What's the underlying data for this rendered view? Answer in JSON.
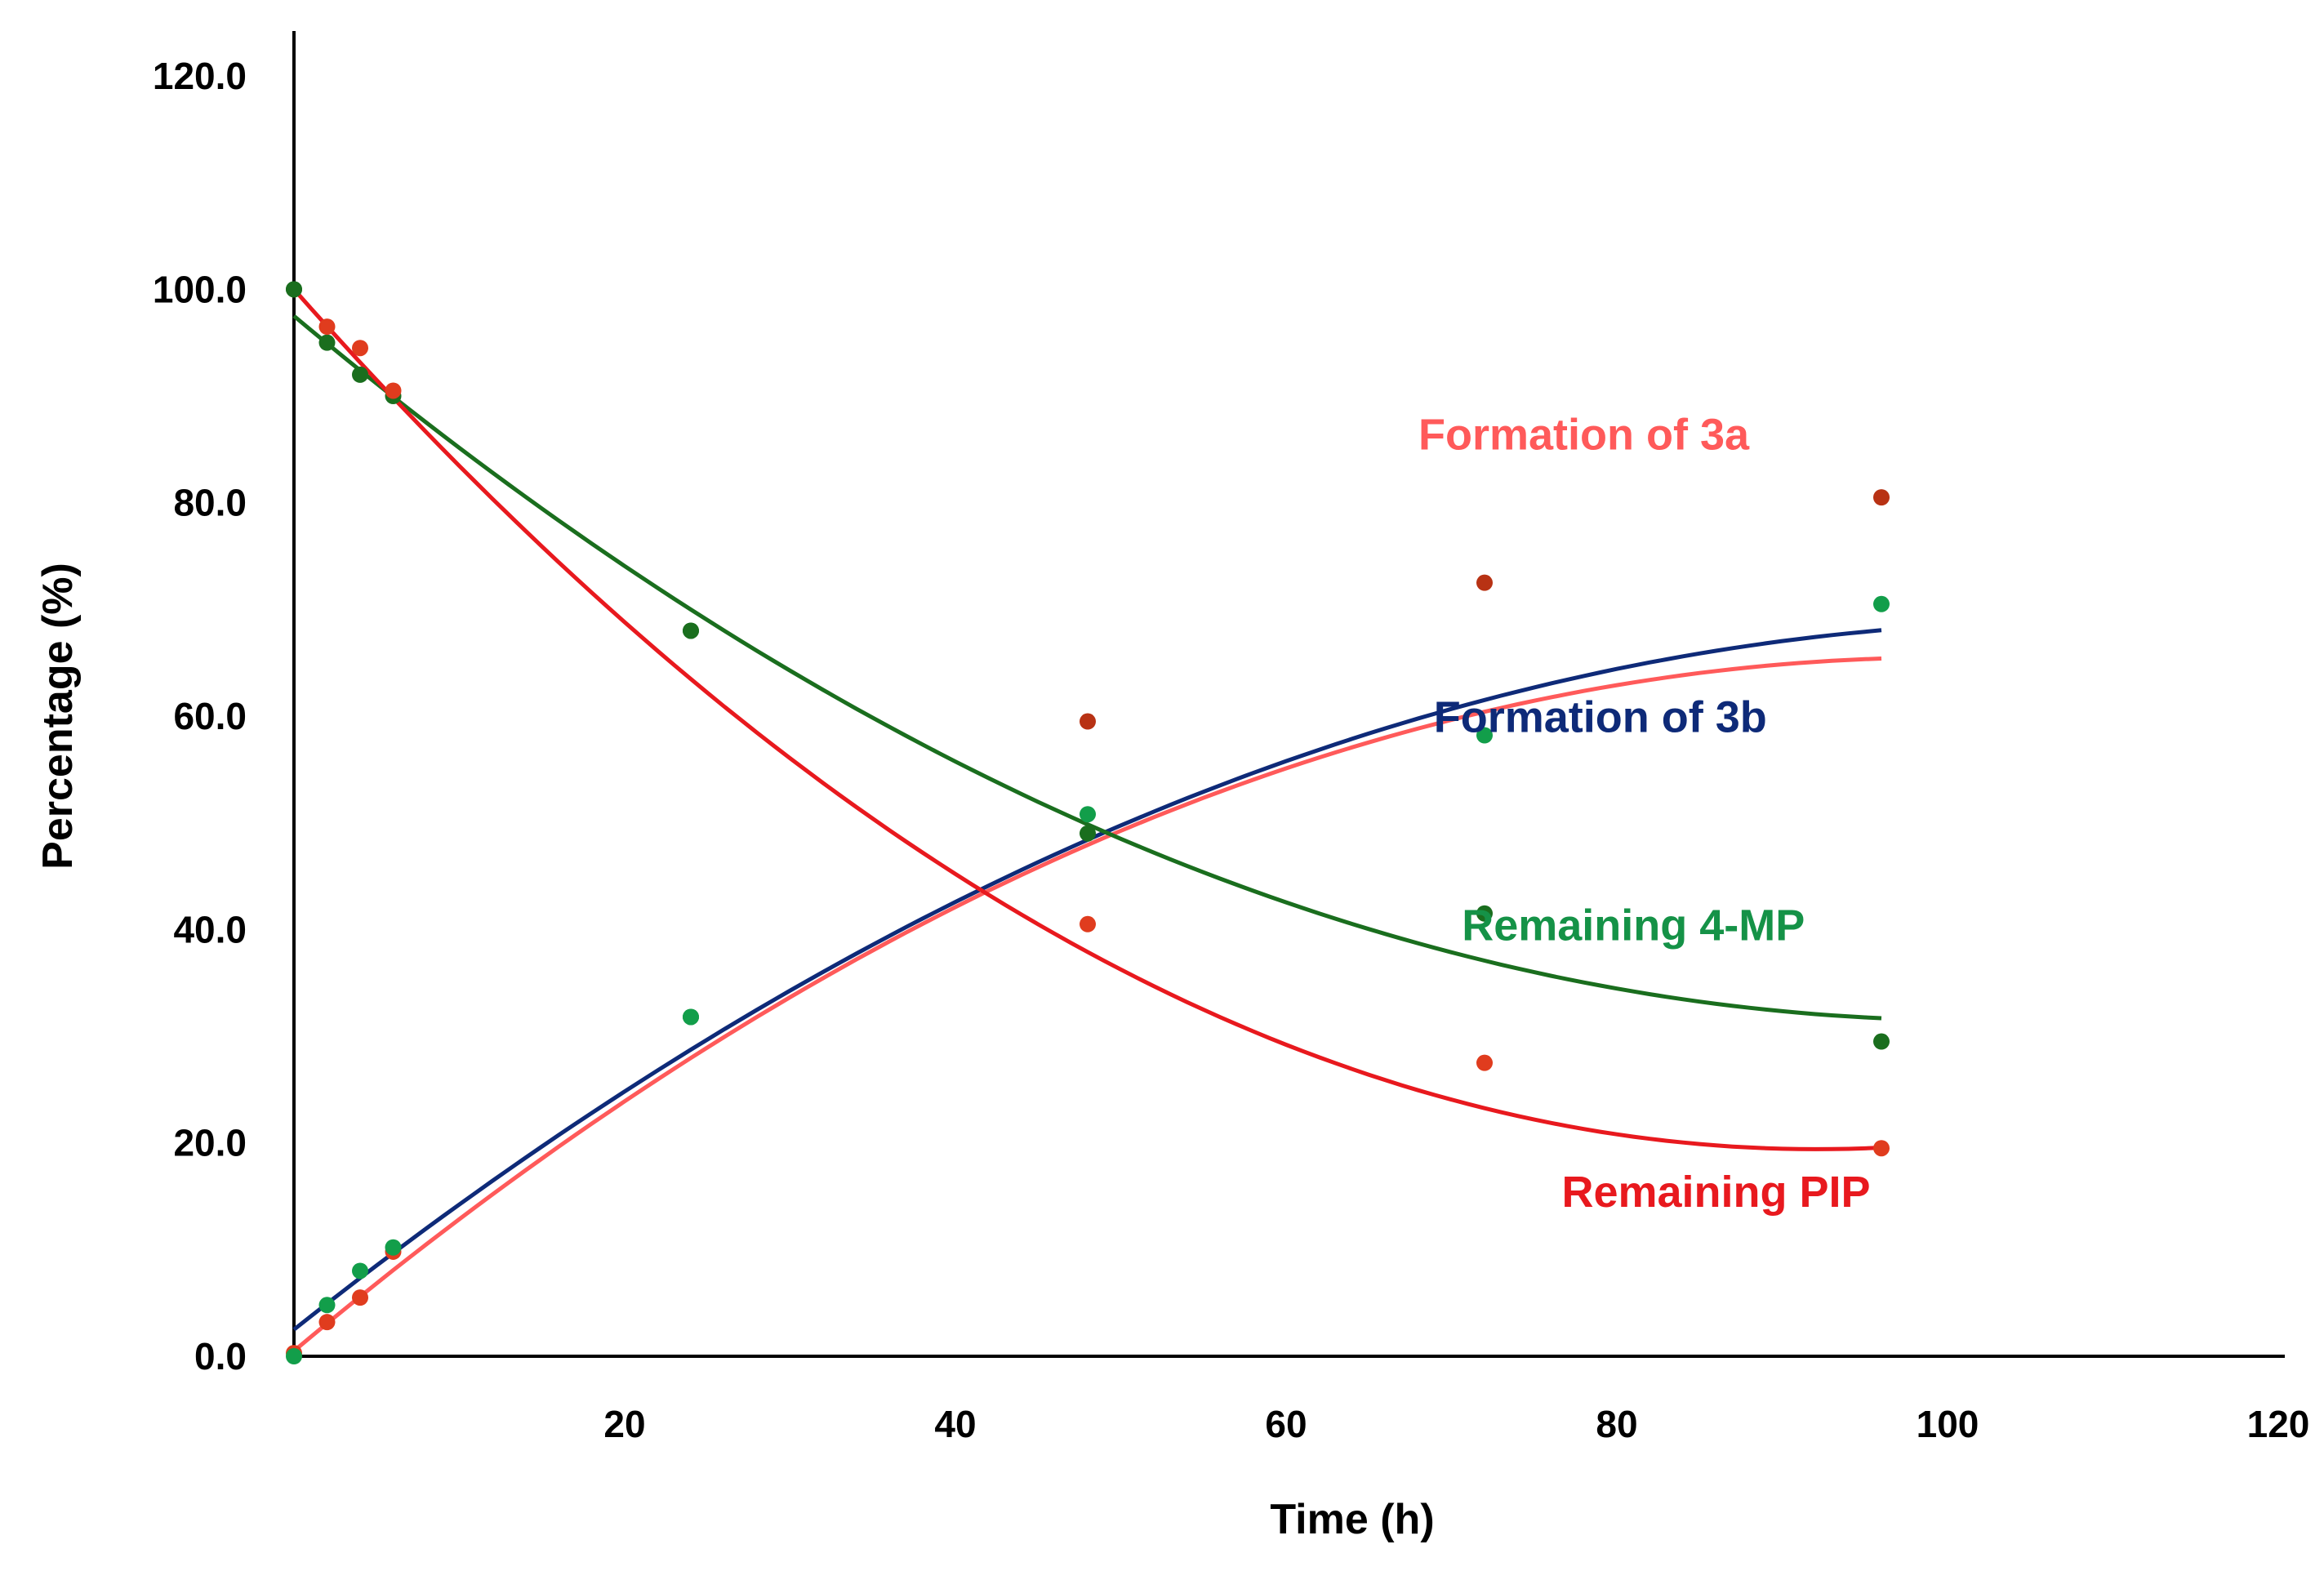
{
  "chart_data": {
    "type": "scatter",
    "title": "",
    "xlabel": "Time (h)",
    "ylabel": "Percentage (%)",
    "xlim": [
      0,
      120
    ],
    "ylim": [
      0,
      120
    ],
    "grid": false,
    "x_ticks": [
      {
        "value": 20,
        "label": "20"
      },
      {
        "value": 40,
        "label": "40"
      },
      {
        "value": 60,
        "label": "60"
      },
      {
        "value": 80,
        "label": "80"
      },
      {
        "value": 100,
        "label": "100"
      },
      {
        "value": 120,
        "label": "120"
      }
    ],
    "y_ticks": [
      {
        "value": 0,
        "label": "0.0"
      },
      {
        "value": 20,
        "label": "20.0"
      },
      {
        "value": 40,
        "label": "40.0"
      },
      {
        "value": 60,
        "label": "60.0"
      },
      {
        "value": 80,
        "label": "80.0"
      },
      {
        "value": 100,
        "label": "100.0"
      },
      {
        "value": 120,
        "label": "120.0"
      }
    ],
    "series": [
      {
        "name": "Formation of 3a",
        "key": "formation-3a",
        "line_color": "#ff5a5a",
        "label_color": "#ff5a5a",
        "label_anchor": {
          "x": 78,
          "y": 85
        },
        "x": [
          0,
          2,
          4,
          6,
          24,
          48,
          72,
          96
        ],
        "y": [
          0.3,
          3.2,
          5.5,
          9.8,
          31.8,
          59.5,
          72.5,
          80.5
        ],
        "point_colors": [
          "#e03c1e",
          "#e03c1e",
          "#e03c1e",
          "#e03c1e",
          "#1e8c3c",
          "#b83214",
          "#b83214",
          "#b83214"
        ],
        "fit": [
          0.5,
          1.3,
          -0.0065
        ]
      },
      {
        "name": "Formation of 3b",
        "key": "formation-3b",
        "line_color": "#0e2a78",
        "label_color": "#0e2a78",
        "label_anchor": {
          "x": 79,
          "y": 58.5
        },
        "x": [
          0,
          2,
          4,
          6,
          24,
          48,
          72,
          96
        ],
        "y": [
          0,
          4.8,
          8,
          10.2,
          31.8,
          50.8,
          58.2,
          70.5
        ],
        "point_colors": [
          "#129e4a",
          "#129e4a",
          "#129e4a",
          "#129e4a",
          "#129e4a",
          "#129e4a",
          "#129e4a",
          "#129e4a"
        ],
        "fit": [
          2.5,
          1.23,
          -0.0057
        ]
      },
      {
        "name": "Remaining 4-MP",
        "key": "remaining-4mp",
        "line_color": "#1a6e1e",
        "label_color": "#159247",
        "label_anchor": {
          "x": 81,
          "y": 39
        },
        "x": [
          0,
          2,
          4,
          6,
          24,
          48,
          72,
          96
        ],
        "y": [
          100,
          95,
          92,
          90,
          68,
          49,
          41.5,
          29.5
        ],
        "point_colors": [
          "#1a6e1e",
          "#1a6e1e",
          "#1a6e1e",
          "#1a6e1e",
          "#1a6e1e",
          "#1a6e1e",
          "#1a6e1e",
          "#1a6e1e"
        ],
        "fit": [
          97.5,
          -1.3,
          0.0064
        ]
      },
      {
        "name": "Remaining PIP",
        "key": "remaining-pip",
        "line_color": "#e8191e",
        "label_color": "#e8191e",
        "label_anchor": {
          "x": 86,
          "y": 14
        },
        "x": [
          0,
          2,
          4,
          6,
          24,
          48,
          72,
          96
        ],
        "y": [
          100,
          96.5,
          94.5,
          90.5,
          68,
          40.5,
          27.5,
          19.5
        ],
        "point_colors": [
          "#1a6e1e",
          "#e03c1e",
          "#e03c1e",
          "#e03c1e",
          "#1a6e1e",
          "#e03c1e",
          "#e03c1e",
          "#e03c1e"
        ],
        "fit": [
          100,
          -1.75,
          0.0095
        ]
      }
    ]
  }
}
